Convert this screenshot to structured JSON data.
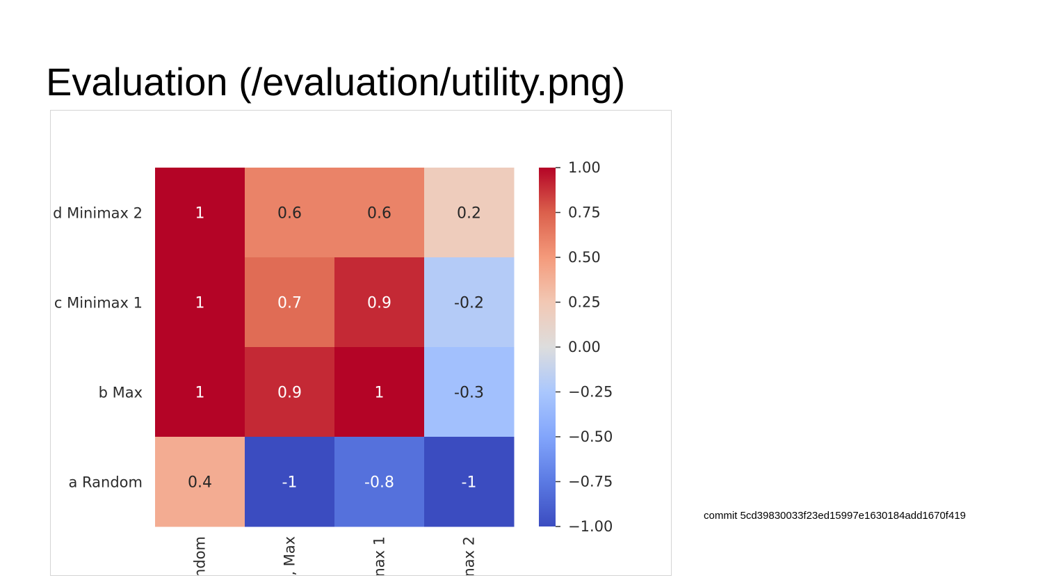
{
  "slide": {
    "title": "Evaluation (/evaluation/utility.png)",
    "commit": "commit 5cd39830033f23ed15997e1630184add1670f419"
  },
  "chart_data": {
    "type": "heatmap",
    "rows": [
      "d Minimax 2",
      "c Minimax 1",
      "b Max",
      "a Random"
    ],
    "columns": [
      "ndom",
      ", Max",
      "nax 1",
      "nax 2"
    ],
    "values": [
      [
        1,
        0.6,
        0.6,
        0.2
      ],
      [
        1,
        0.7,
        0.9,
        -0.2
      ],
      [
        1,
        0.9,
        1,
        -0.3
      ],
      [
        0.4,
        -1,
        -0.8,
        -1
      ]
    ],
    "cell_labels": [
      [
        "1",
        "0.6",
        "0.6",
        "0.2"
      ],
      [
        "1",
        "0.7",
        "0.9",
        "-0.2"
      ],
      [
        "1",
        "0.9",
        "1",
        "-0.3"
      ],
      [
        "0.4",
        "-1",
        "-0.8",
        "-1"
      ]
    ],
    "colormap": "coolwarm",
    "vmin": -1,
    "vmax": 1,
    "colorbar_ticks": [
      1.0,
      0.75,
      0.5,
      0.25,
      0.0,
      -0.25,
      -0.5,
      -0.75,
      -1.0
    ],
    "colorbar_tick_labels": [
      "1.00",
      "0.75",
      "0.50",
      "0.25",
      "0.00",
      "−0.25",
      "−0.50",
      "−0.75",
      "−1.00"
    ],
    "colors": {
      "max": "#b40426",
      "mid": "#dddddd",
      "min": "#3b4cc0"
    }
  }
}
